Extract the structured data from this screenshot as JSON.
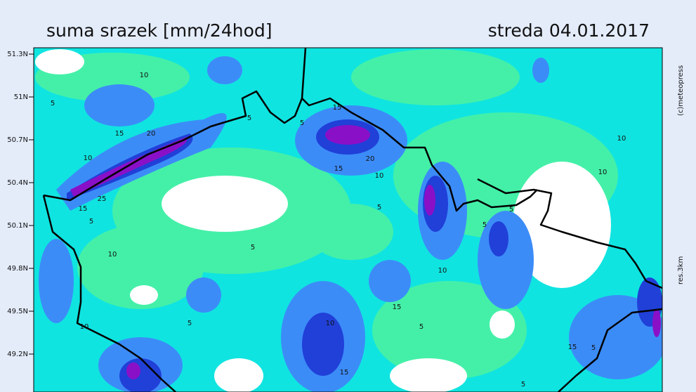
{
  "header": {
    "title": "suma srazek [mm/24hod]",
    "date": "streda 04.01.2017"
  },
  "latitude_labels": [
    "51.3N",
    "51N",
    "50.7N",
    "50.4N",
    "50.1N",
    "49.8N",
    "49.5N",
    "49.2N"
  ],
  "side_labels": {
    "copyright": "(c)meteopress",
    "resolution": "res.3km"
  },
  "contour_labels": [
    5,
    10,
    15,
    20,
    25,
    15,
    5,
    10,
    10,
    10,
    5,
    5,
    15,
    15,
    20,
    10,
    5,
    10,
    15,
    5,
    15,
    5,
    5,
    5,
    10,
    10,
    15,
    5,
    5,
    10,
    5
  ]
}
